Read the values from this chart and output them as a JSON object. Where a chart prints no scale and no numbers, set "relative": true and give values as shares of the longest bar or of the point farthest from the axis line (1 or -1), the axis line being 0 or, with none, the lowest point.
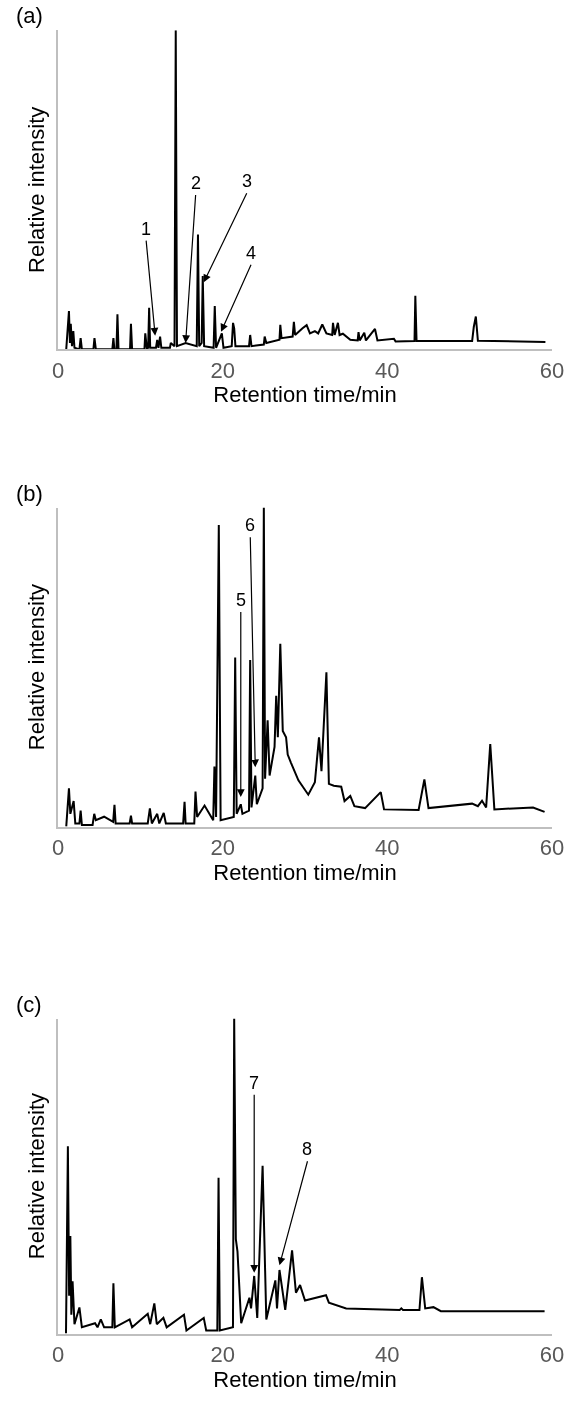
{
  "chart_data": [
    {
      "type": "line",
      "title": "(a)",
      "xlabel": "Retention time/min",
      "ylabel": "Relative intensity",
      "relative": true,
      "color": "#000000",
      "xlim": [
        0,
        60
      ],
      "xticks": [
        0,
        20,
        40,
        60
      ],
      "x": [
        1.0,
        1.33,
        1.45,
        1.55,
        1.7,
        1.86,
        2.0,
        2.6,
        2.75,
        2.9,
        4.3,
        4.43,
        4.6,
        6.6,
        6.73,
        6.85,
        7.1,
        7.22,
        7.35,
        8.75,
        8.86,
        9.0,
        10.5,
        10.6,
        10.8,
        10.95,
        11.07,
        11.2,
        11.9,
        12.05,
        12.2,
        12.4,
        12.55,
        13.6,
        13.7,
        14.15,
        14.3,
        14.45,
        15.5,
        16.85,
        17.0,
        17.15,
        17.45,
        17.58,
        17.75,
        18.9,
        19.04,
        19.2,
        19.9,
        20.1,
        21.1,
        21.26,
        21.4,
        21.55,
        23.2,
        23.34,
        23.5,
        25.0,
        25.1,
        25.3,
        26.9,
        27.0,
        27.15,
        28.5,
        28.65,
        28.8,
        29.7,
        30.2,
        30.6,
        31.2,
        31.6,
        32.1,
        32.6,
        33.3,
        33.4,
        33.6,
        34.0,
        34.2,
        34.6,
        35.5,
        36.4,
        36.5,
        36.65,
        37.2,
        37.4,
        38.5,
        38.8,
        40.8,
        41.0,
        43.3,
        43.4,
        43.55,
        50.3,
        50.5,
        50.75,
        51.0,
        59.2
      ],
      "values": [
        0,
        0.12,
        0.02,
        0.08,
        0.01,
        0.057,
        0.005,
        0,
        0.035,
        0,
        0,
        0.035,
        0,
        0,
        0.035,
        0,
        0,
        0.11,
        0,
        0,
        0.08,
        0,
        0,
        0.05,
        0,
        0.005,
        0.13,
        0.005,
        0.005,
        0.03,
        0.005,
        0.04,
        0.005,
        0.005,
        0.02,
        0.01,
        1.0,
        0.01,
        0.02,
        0.01,
        0.36,
        0.01,
        0.02,
        0.23,
        0.01,
        0.005,
        0.136,
        0.005,
        0.05,
        0.005,
        0.01,
        0.083,
        0.066,
        0.01,
        0.01,
        0.045,
        0.01,
        0.015,
        0.04,
        0.02,
        0.03,
        0.077,
        0.035,
        0.04,
        0.086,
        0.045,
        0.066,
        0.076,
        0.05,
        0.057,
        0.05,
        0.078,
        0.05,
        0.045,
        0.083,
        0.045,
        0.083,
        0.045,
        0.049,
        0.03,
        0.028,
        0.054,
        0.028,
        0.052,
        0.028,
        0.064,
        0.028,
        0.033,
        0.025,
        0.026,
        0.168,
        0.026,
        0.026,
        0.07,
        0.103,
        0.027,
        0.023
      ],
      "annotations": [
        {
          "text": "1",
          "x": 11.8,
          "y": 0.043
        },
        {
          "text": "2",
          "x": 15.5,
          "y": 0.02
        },
        {
          "text": "3",
          "x": 17.7,
          "y": 0.21
        },
        {
          "text": "4",
          "x": 19.8,
          "y": 0.055
        }
      ]
    },
    {
      "type": "line",
      "title": "(b)",
      "xlabel": "Retention time/min",
      "ylabel": "Relative intensity",
      "relative": true,
      "color": "#000000",
      "xlim": [
        0,
        60
      ],
      "xticks": [
        0,
        20,
        40,
        60
      ],
      "x": [
        1.0,
        1.33,
        1.5,
        1.9,
        2.1,
        2.6,
        2.75,
        2.9,
        4.2,
        4.4,
        4.6,
        5.6,
        6.7,
        6.86,
        7.0,
        8.7,
        8.86,
        9.0,
        10.9,
        11.16,
        11.4,
        12.05,
        12.3,
        12.84,
        13.1,
        15.2,
        15.37,
        15.5,
        16.55,
        16.7,
        16.9,
        17.8,
        18.85,
        19.0,
        19.2,
        19.53,
        19.75,
        21.35,
        21.52,
        21.7,
        22.2,
        22.4,
        23.2,
        23.34,
        23.5,
        23.96,
        24.15,
        24.85,
        25.0,
        25.15,
        25.46,
        25.7,
        26.3,
        26.5,
        26.7,
        27.0,
        27.3,
        27.7,
        27.9,
        28.3,
        29.2,
        30.4,
        31.2,
        31.7,
        32.0,
        32.6,
        32.9,
        33.5,
        34.4,
        34.8,
        35.5,
        36.0,
        37.3,
        39.2,
        39.6,
        43.8,
        44.5,
        45.0,
        50.3,
        51.0,
        51.5,
        52.0,
        52.5,
        53.0,
        57.7,
        59.1
      ],
      "values": [
        0,
        0.12,
        0.04,
        0.08,
        0.01,
        0.01,
        0.05,
        0.005,
        0.005,
        0.04,
        0.02,
        0.031,
        0.015,
        0.068,
        0.01,
        0.01,
        0.034,
        0.01,
        0.01,
        0.057,
        0.01,
        0.04,
        0.01,
        0.043,
        0.01,
        0.01,
        0.078,
        0.01,
        0.01,
        0.11,
        0.03,
        0.066,
        0.02,
        0.188,
        0.03,
        0.945,
        0.02,
        0.03,
        0.53,
        0.04,
        0.07,
        0.04,
        0.05,
        0.522,
        0.06,
        0.16,
        0.07,
        0.12,
        1.0,
        0.15,
        0.333,
        0.16,
        0.25,
        0.41,
        0.28,
        0.573,
        0.3,
        0.28,
        0.226,
        0.2,
        0.145,
        0.1,
        0.139,
        0.28,
        0.174,
        0.484,
        0.134,
        0.128,
        0.125,
        0.08,
        0.096,
        0.064,
        0.058,
        0.108,
        0.054,
        0.052,
        0.148,
        0.058,
        0.072,
        0.064,
        0.081,
        0.06,
        0.259,
        0.054,
        0.06,
        0.046
      ],
      "annotations": [
        {
          "text": "5",
          "x": 22.2,
          "y": 0.093
        },
        {
          "text": "6",
          "x": 23.96,
          "y": 0.186
        }
      ]
    },
    {
      "type": "line",
      "title": "(c)",
      "xlabel": "Retention time/min",
      "ylabel": "Relative intensity",
      "relative": true,
      "color": "#000000",
      "xlim": [
        0,
        60
      ],
      "xticks": [
        0,
        20,
        40,
        60
      ],
      "x": [
        0.97,
        1.2,
        1.35,
        1.5,
        1.62,
        1.77,
        2.0,
        2.6,
        2.9,
        4.5,
        4.8,
        5.2,
        5.6,
        6.6,
        6.73,
        6.9,
        8.7,
        9.0,
        10.9,
        11.2,
        11.7,
        12.0,
        12.8,
        13.2,
        15.3,
        15.6,
        17.7,
        18.0,
        19.35,
        19.5,
        19.65,
        21.25,
        21.4,
        21.6,
        21.8,
        22.25,
        23.25,
        23.45,
        23.83,
        24.2,
        24.85,
        25.3,
        26.4,
        26.6,
        26.9,
        27.6,
        28.43,
        28.9,
        29.4,
        30.0,
        32.55,
        32.9,
        35.0,
        41.5,
        41.7,
        41.9,
        43.9,
        44.2,
        44.6,
        45.6,
        46.5,
        59.1
      ],
      "values": [
        0,
        0.595,
        0.12,
        0.31,
        0.06,
        0.166,
        0.03,
        0.083,
        0.02,
        0.033,
        0.02,
        0.045,
        0.02,
        0.02,
        0.16,
        0.02,
        0.045,
        0.02,
        0.063,
        0.03,
        0.096,
        0.03,
        0.05,
        0.02,
        0.06,
        0.01,
        0.05,
        0.01,
        0.01,
        0.495,
        0.01,
        0.02,
        1.0,
        0.3,
        0.26,
        0.033,
        0.114,
        0.08,
        0.183,
        0.05,
        0.533,
        0.045,
        0.169,
        0.08,
        0.202,
        0.075,
        0.264,
        0.13,
        0.154,
        0.105,
        0.122,
        0.098,
        0.08,
        0.075,
        0.08,
        0.075,
        0.075,
        0.179,
        0.08,
        0.084,
        0.071,
        0.071
      ],
      "annotations": [
        {
          "text": "7",
          "x": 23.83,
          "y": 0.193
        },
        {
          "text": "8",
          "x": 26.9,
          "y": 0.217
        }
      ]
    }
  ]
}
